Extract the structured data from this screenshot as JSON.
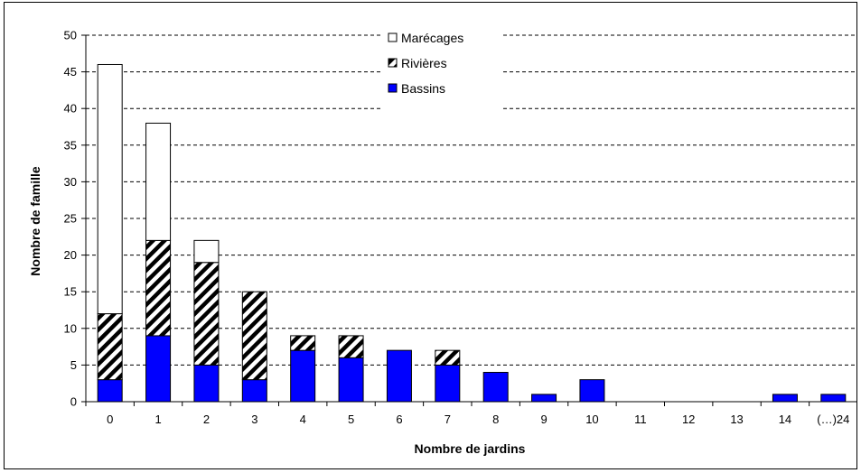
{
  "chart_data": {
    "type": "bar",
    "stacked": true,
    "title": "",
    "xlabel": "Nombre de jardins",
    "ylabel": "Nombre de famille",
    "ylim": [
      0,
      50
    ],
    "yticks": [
      0,
      5,
      10,
      15,
      20,
      25,
      30,
      35,
      40,
      45,
      50
    ],
    "grid": true,
    "legend_position": "top-center",
    "categories": [
      "0",
      "1",
      "2",
      "3",
      "4",
      "5",
      "6",
      "7",
      "8",
      "9",
      "10",
      "11",
      "12",
      "13",
      "14",
      "(…)24"
    ],
    "series": [
      {
        "name": "Bassins",
        "pattern": "solid",
        "color": "#0000ff",
        "values": [
          3,
          9,
          5,
          3,
          7,
          6,
          7,
          5,
          4,
          1,
          3,
          0,
          0,
          0,
          1,
          1
        ]
      },
      {
        "name": "Rivières",
        "pattern": "diagonal-hatch",
        "color": "#000000",
        "values": [
          9,
          13,
          14,
          12,
          2,
          3,
          0,
          2,
          0,
          0,
          0,
          0,
          0,
          0,
          0,
          0
        ]
      },
      {
        "name": "Marécages",
        "pattern": "empty",
        "color": "#ffffff",
        "values": [
          34,
          16,
          3,
          0,
          0,
          0,
          0,
          0,
          0,
          0,
          0,
          0,
          0,
          0,
          0,
          0
        ]
      }
    ],
    "legend_order": [
      "Marécages",
      "Rivières",
      "Bassins"
    ]
  }
}
